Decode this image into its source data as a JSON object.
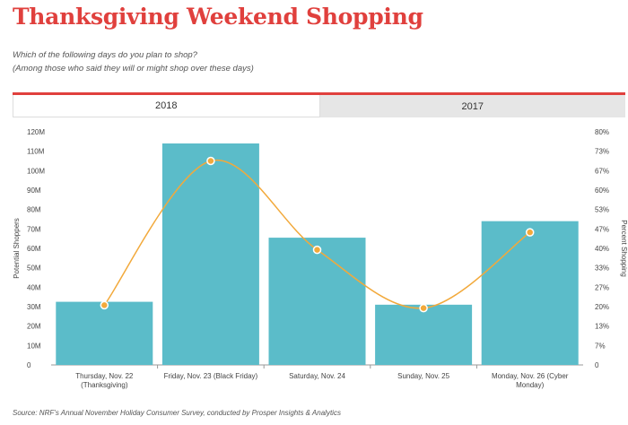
{
  "header": {
    "title": "Thanksgiving Weekend Shopping",
    "subtitle_line1": "Which of the following days do you plan to shop?",
    "subtitle_line2": "(Among those who said they will or might shop over these days)"
  },
  "tabs": [
    {
      "label": "2018",
      "active": true
    },
    {
      "label": "2017",
      "active": false
    }
  ],
  "source": "Source:  NRF’s Annual November Holiday Consumer Survey, conducted by Prosper Insights & Analytics",
  "colors": {
    "title": "#e0403d",
    "bars": "#5bbcc9",
    "line": "#f2a93b",
    "tab_accent": "#e0403d"
  },
  "chart_data": {
    "type": "bar",
    "categories": [
      [
        "Thursday, Nov. 22",
        "(Thanksgiving)"
      ],
      [
        "Friday, Nov. 23 (Black Friday)"
      ],
      [
        "Saturday, Nov. 24"
      ],
      [
        "Sunday, Nov. 25"
      ],
      [
        "Monday, Nov. 26 (Cyber",
        "Monday)"
      ]
    ],
    "series": [
      {
        "type": "bar",
        "axis": "left",
        "values": [
          32.5,
          114,
          65.5,
          31,
          74
        ]
      },
      {
        "type": "line",
        "axis": "right",
        "smooth": true,
        "values": [
          20.5,
          70,
          39.5,
          19.5,
          45.5
        ]
      }
    ],
    "ylabel_left": "Potential Shoppers",
    "ylabel_right": "Percent Shopping",
    "left_ticks": [
      "0",
      "10M",
      "20M",
      "30M",
      "40M",
      "50M",
      "60M",
      "70M",
      "80M",
      "90M",
      "100M",
      "110M",
      "120M"
    ],
    "right_ticks": [
      "0",
      "7%",
      "13%",
      "20%",
      "27%",
      "33%",
      "40%",
      "47%",
      "53%",
      "60%",
      "67%",
      "73%",
      "80%"
    ],
    "ylim_left": [
      0,
      120
    ],
    "ylim_right": [
      0,
      80
    ],
    "grid": false,
    "legend": "none"
  }
}
